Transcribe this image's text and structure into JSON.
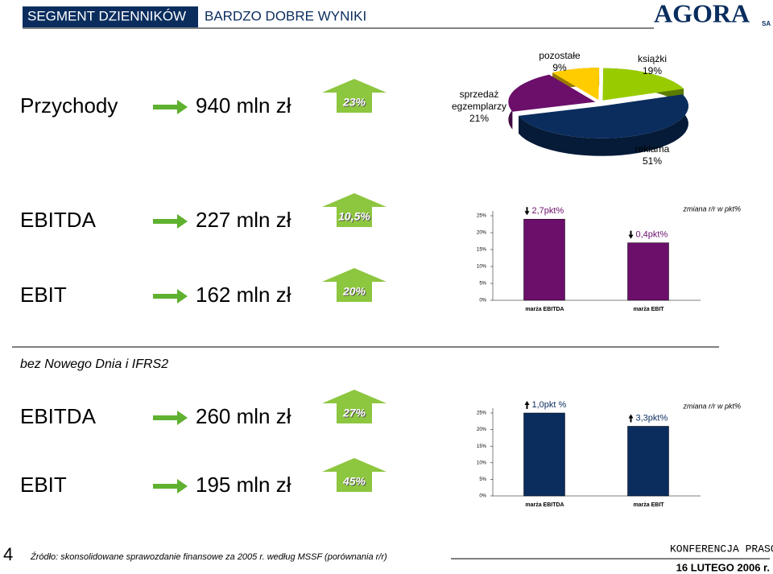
{
  "header": {
    "segment": "SEGMENT DZIENNIKÓW",
    "subtitle": "BARDZO DOBRE WYNIKI",
    "logo": "AGORA",
    "logo_suffix": "SA"
  },
  "rows": [
    {
      "label": "Przychody",
      "value": "940 mln zł",
      "change": "23%"
    },
    {
      "label": "EBITDA",
      "value": "227 mln zł",
      "change": "10,5%"
    },
    {
      "label": "EBIT",
      "value": "162 mln zł",
      "change": "20%"
    },
    {
      "label": "EBITDA",
      "value": "260 mln zł",
      "change": "27%"
    },
    {
      "label": "EBIT",
      "value": "195 mln zł",
      "change": "45%"
    }
  ],
  "section_title": "bez Nowego Dnia i IFRS2",
  "chart_data": [
    {
      "type": "pie",
      "categories": [
        "pozostałe",
        "książki",
        "reklama",
        "sprzedaż egzemplarzy"
      ],
      "values": [
        9,
        19,
        51,
        21
      ],
      "value_labels": [
        "9%",
        "19%",
        "51%",
        "21%"
      ],
      "colors": [
        "#ffcc00",
        "#99cc00",
        "#0a2d5e",
        "#6b0f6b"
      ]
    },
    {
      "type": "bar",
      "categories": [
        "marża EBITDA",
        "marża EBIT"
      ],
      "values": [
        24,
        17
      ],
      "color": "#6b0f6b",
      "annotation": "zmiana r/r w pkt%",
      "bar_annotations": [
        "2,7pkt%",
        "0,4pkt%"
      ],
      "arrow_direction": "down",
      "ylim": [
        0,
        25
      ],
      "yticks": [
        {
          "value": 0,
          "label": "0%"
        },
        {
          "value": 5,
          "label": "5%"
        },
        {
          "value": 10,
          "label": "10%"
        },
        {
          "value": 15,
          "label": "15%"
        },
        {
          "value": 20,
          "label": "20%"
        },
        {
          "value": 25,
          "label": "25%"
        }
      ]
    },
    {
      "type": "bar",
      "categories": [
        "marża EBITDA",
        "marża EBIT"
      ],
      "values": [
        25,
        21
      ],
      "color": "#0a2d5e",
      "annotation": "zmiana r/r w pkt%",
      "bar_annotations": [
        "1,0pkt %",
        "3,3pkt%"
      ],
      "arrow_direction": "up",
      "ylim": [
        0,
        25
      ],
      "yticks": [
        {
          "value": 0,
          "label": "0%"
        },
        {
          "value": 5,
          "label": "5%"
        },
        {
          "value": 10,
          "label": "10%"
        },
        {
          "value": 15,
          "label": "15%"
        },
        {
          "value": 20,
          "label": "20%"
        },
        {
          "value": 25,
          "label": "25%"
        }
      ]
    }
  ],
  "footer": {
    "page": "4",
    "source": "Źródło: skonsolidowane sprawozdanie finansowe za 2005 r. według MSSF (porównania r/r)",
    "event": "KONFERENCJA PRASOWA",
    "date": "16 LUTEGO 2006 r."
  }
}
